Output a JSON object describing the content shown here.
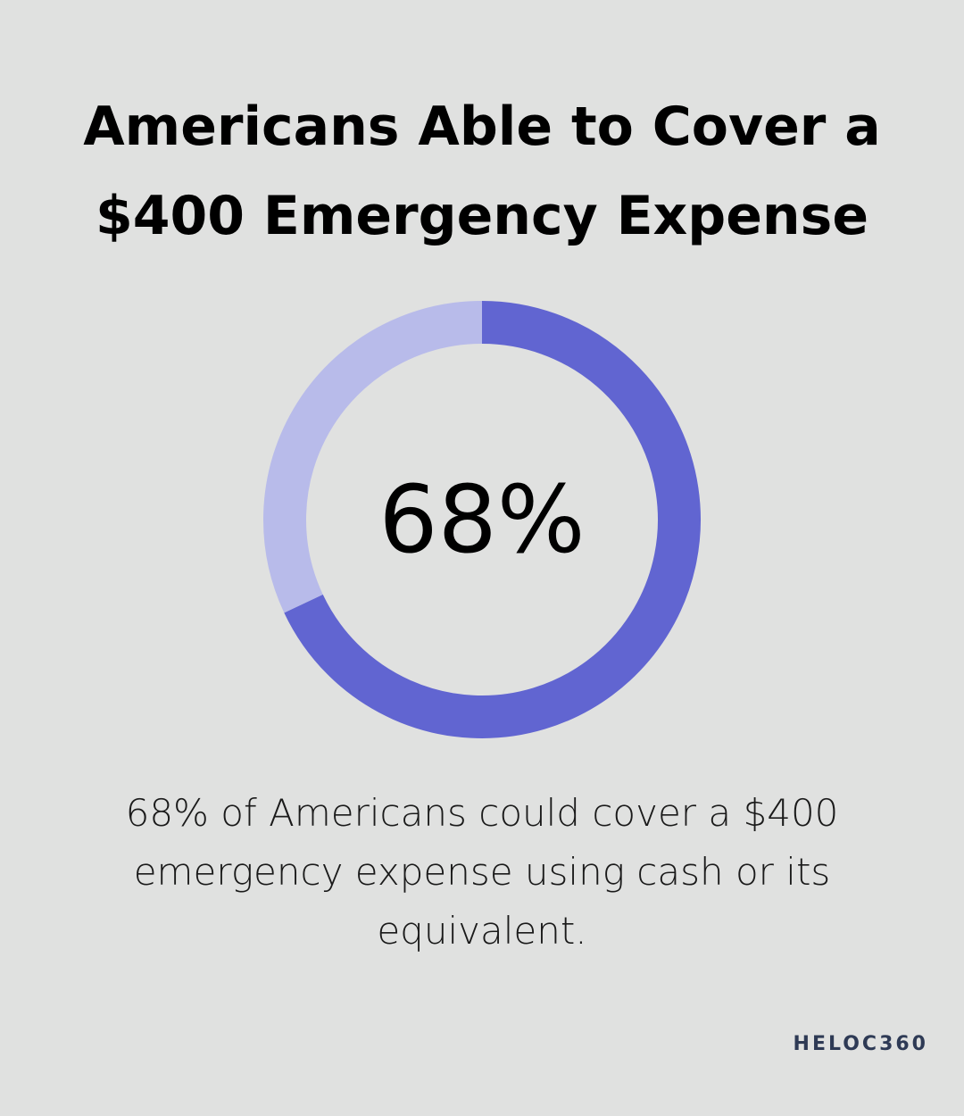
{
  "chart_data": {
    "type": "donut",
    "title": [
      "Americans Able to Cover a",
      "$400 Emergency Expense"
    ],
    "values": [
      68,
      32
    ],
    "value_labels": [
      "68%",
      null
    ],
    "colors": [
      "#6165d1",
      "#b8bbea"
    ],
    "caption": "68% of Americans could cover a $400 emergency expense using cash or its equivalent.",
    "logo": "HELOC360"
  }
}
